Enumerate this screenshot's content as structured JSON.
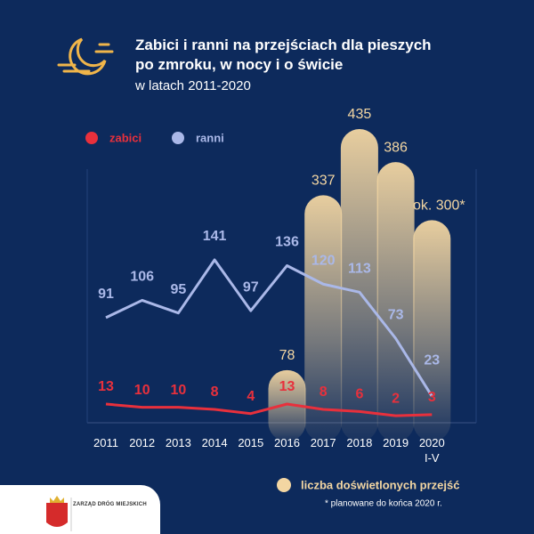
{
  "chart_data": {
    "type": "combo",
    "title": "Zabici i ranni na przejściach dla pieszych\npo zmroku, w nocy i o świcie",
    "subtitle": "w latach 2011-2020",
    "categories": [
      "2011",
      "2012",
      "2013",
      "2014",
      "2015",
      "2016",
      "2017",
      "2018",
      "2019",
      "2020\nI-V"
    ],
    "series": [
      {
        "name": "zabici",
        "type": "line",
        "color": "#e8303c",
        "values": [
          13,
          10,
          10,
          8,
          4,
          13,
          8,
          6,
          2,
          3
        ]
      },
      {
        "name": "ranni",
        "type": "line",
        "color": "#aab8e8",
        "values": [
          91,
          106,
          95,
          141,
          97,
          136,
          120,
          113,
          73,
          23
        ]
      },
      {
        "name": "liczba doświetlonych przejść",
        "type": "bar",
        "color": "#f3d6a2",
        "values": [
          null,
          null,
          null,
          null,
          null,
          78,
          337,
          435,
          386,
          300
        ],
        "value_labels": [
          null,
          null,
          null,
          null,
          null,
          null,
          null,
          null,
          null,
          "ok. 300*"
        ]
      }
    ],
    "footnote": "* planowane do końca 2020 r."
  },
  "footer": {
    "logo": "ZARZĄD DRÓG MIEJSKICH"
  }
}
